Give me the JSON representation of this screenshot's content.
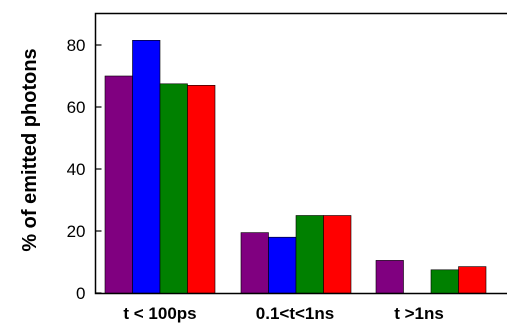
{
  "chart_data": {
    "type": "bar",
    "title": "",
    "xlabel": "",
    "ylabel": "% of emitted photons",
    "ylim": [
      0,
      90
    ],
    "yticks": [
      0,
      20,
      40,
      60,
      80
    ],
    "grid": false,
    "legend": "none",
    "categories": [
      "t < 100ps",
      "0.1<t<1ns",
      "t >1ns"
    ],
    "series": [
      {
        "color": "#800080",
        "values": [
          70,
          19.5,
          10.5
        ]
      },
      {
        "color": "#0000ff",
        "values": [
          81.5,
          18,
          null
        ]
      },
      {
        "color": "#008000",
        "values": [
          67.5,
          25,
          7.5
        ]
      },
      {
        "color": "#ff0000",
        "values": [
          67,
          25,
          8.5
        ]
      }
    ]
  }
}
